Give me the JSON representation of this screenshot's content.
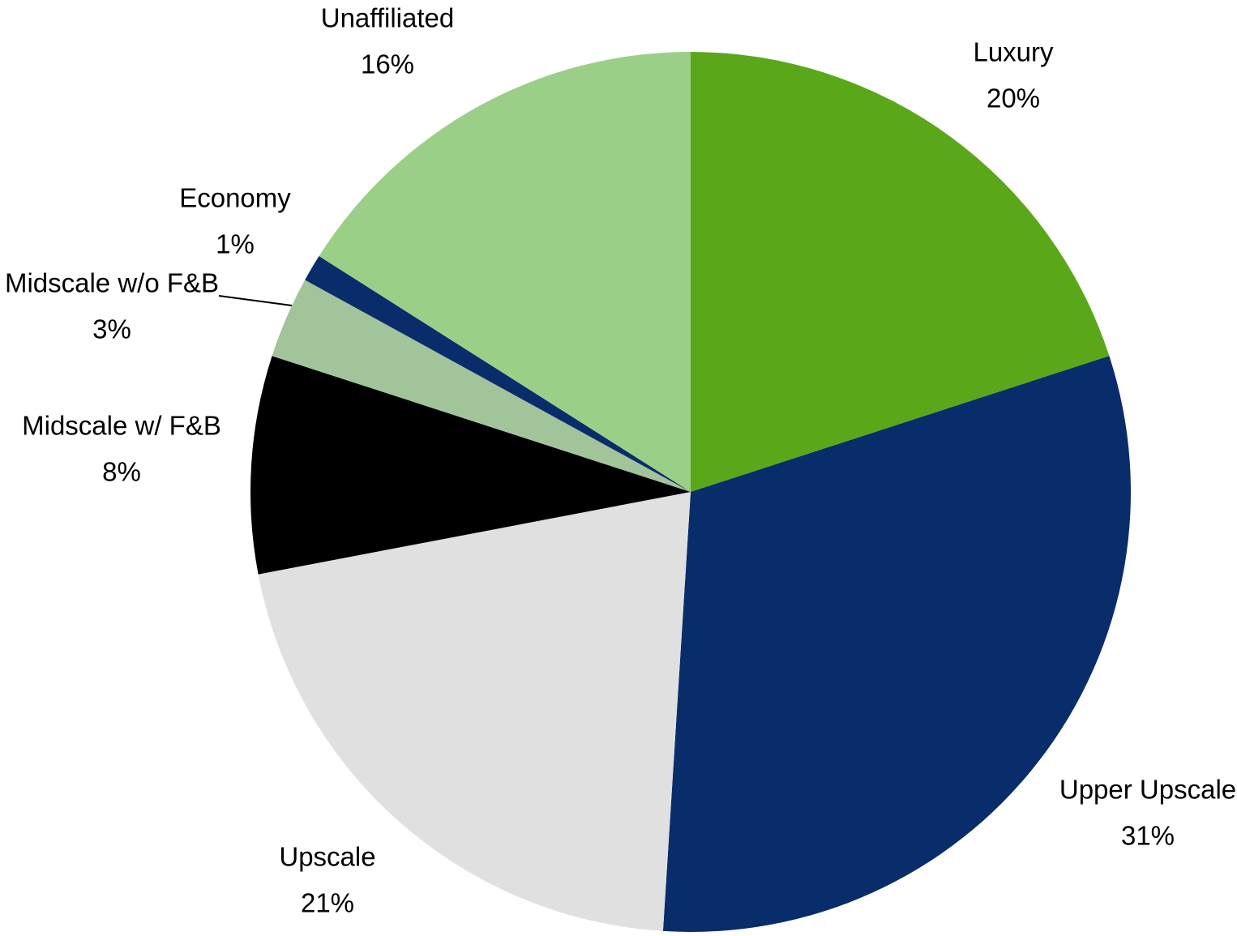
{
  "chart_data": {
    "type": "pie",
    "categories": [
      "Luxury",
      "Upper Upscale",
      "Upscale",
      "Midscale w/ F&B",
      "Midscale w/o F&B",
      "Economy",
      "Unaffiliated"
    ],
    "values": [
      20,
      31,
      21,
      8,
      3,
      1,
      16
    ],
    "value_labels": [
      "20%",
      "31%",
      "21%",
      "8%",
      "3%",
      "1%",
      "16%"
    ],
    "colors": [
      "#5aa81a",
      "#092c6b",
      "#e0e0e0",
      "#000000",
      "#a2c49a",
      "#092c6b",
      "#9bcf87"
    ]
  }
}
